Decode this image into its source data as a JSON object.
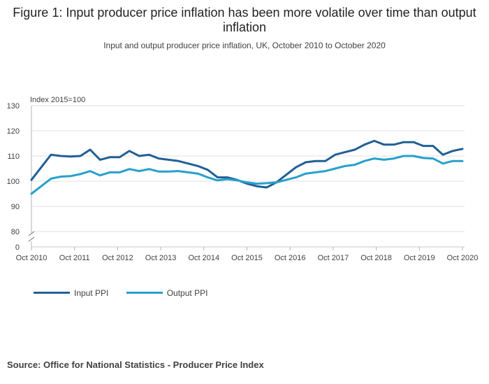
{
  "title": "Figure 1: Input producer price inflation has been more volatile over time than output inflation",
  "subtitle": "Input and output producer price inflation, UK, October 2010 to October 2020",
  "source": "Source: Office for National Statistics - Producer Price Index",
  "chart_data": {
    "type": "line",
    "ylabel": "Index 2015=100",
    "ylim": [
      80,
      130
    ],
    "yticks": [
      130,
      120,
      110,
      100,
      90,
      80
    ],
    "ybreak_label": "0",
    "x_tick_labels": [
      "Oct 2010",
      "Oct 2011",
      "Oct 2012",
      "Oct 2013",
      "Oct 2014",
      "Oct 2015",
      "Oct 2016",
      "Oct 2017",
      "Oct 2018",
      "Oct 2019",
      "Oct 2020"
    ],
    "x_start": "Oct 2010",
    "frequency": "quarterly",
    "grid": true,
    "legend_position": "bottom-left",
    "series": [
      {
        "name": "Input PPI",
        "color": "#206095",
        "values": [
          100.5,
          105.5,
          110.5,
          110.0,
          109.8,
          110.0,
          112.5,
          108.5,
          109.5,
          109.5,
          112.0,
          110.0,
          110.5,
          109.0,
          108.5,
          108.0,
          107.0,
          106.0,
          104.5,
          101.5,
          101.5,
          100.5,
          99.0,
          98.0,
          97.5,
          99.5,
          102.5,
          105.5,
          107.5,
          108.0,
          108.0,
          110.5,
          111.5,
          112.5,
          114.5,
          116.0,
          114.5,
          114.5,
          115.5,
          115.5,
          114.0,
          114.0,
          110.5,
          112.0,
          112.8
        ]
      },
      {
        "name": "Output PPI",
        "color": "#27a0cc",
        "values": [
          95.0,
          98.0,
          101.0,
          101.8,
          102.0,
          102.8,
          104.0,
          102.3,
          103.5,
          103.5,
          104.8,
          104.0,
          104.8,
          103.8,
          103.8,
          104.0,
          103.5,
          103.0,
          101.5,
          100.3,
          100.8,
          100.3,
          99.5,
          99.0,
          99.2,
          99.5,
          100.5,
          101.5,
          103.0,
          103.5,
          104.0,
          105.0,
          106.0,
          106.5,
          108.0,
          109.0,
          108.5,
          109.0,
          110.0,
          110.0,
          109.2,
          109.0,
          107.0,
          108.0,
          108.0
        ]
      }
    ]
  }
}
